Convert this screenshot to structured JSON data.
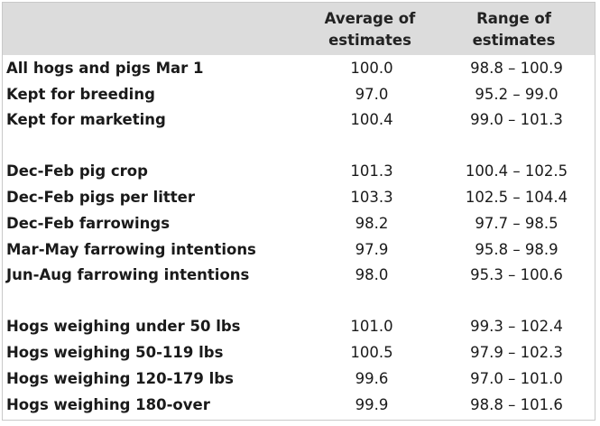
{
  "table": {
    "headers": {
      "label": "",
      "average": [
        "Average of",
        "estimates"
      ],
      "range": [
        "Range of",
        "estimates"
      ]
    },
    "groups": [
      {
        "rows": [
          {
            "label": "All hogs and pigs Mar 1",
            "average": "100.0",
            "range": "98.8 – 100.9"
          },
          {
            "label": "Kept for breeding",
            "average": "97.0",
            "range": "95.2 – 99.0"
          },
          {
            "label": "Kept for marketing",
            "average": "100.4",
            "range": "99.0 – 101.3"
          }
        ]
      },
      {
        "rows": [
          {
            "label": "Dec-Feb pig crop",
            "average": "101.3",
            "range": "100.4 – 102.5"
          },
          {
            "label": "Dec-Feb pigs per litter",
            "average": "103.3",
            "range": "102.5 – 104.4"
          },
          {
            "label": "Dec-Feb farrowings",
            "average": "98.2",
            "range": "97.7 – 98.5"
          },
          {
            "label": "Mar-May farrowing intentions",
            "average": "97.9",
            "range": "95.8 – 98.9"
          },
          {
            "label": "Jun-Aug farrowing intentions",
            "average": "98.0",
            "range": "95.3 – 100.6"
          }
        ]
      },
      {
        "rows": [
          {
            "label": "Hogs weighing under 50 lbs",
            "average": "101.0",
            "range": "99.3 – 102.4"
          },
          {
            "label": "Hogs weighing 50-119 lbs",
            "average": "100.5",
            "range": "97.9 – 102.3"
          },
          {
            "label": "Hogs weighing 120-179 lbs",
            "average": "99.6",
            "range": "97.0 – 101.0"
          },
          {
            "label": "Hogs weighing 180-over",
            "average": "99.9",
            "range": "98.8 – 101.6"
          }
        ]
      }
    ],
    "colors": {
      "header_background": "#dcdcdc",
      "border": "#c9c9c9"
    }
  }
}
